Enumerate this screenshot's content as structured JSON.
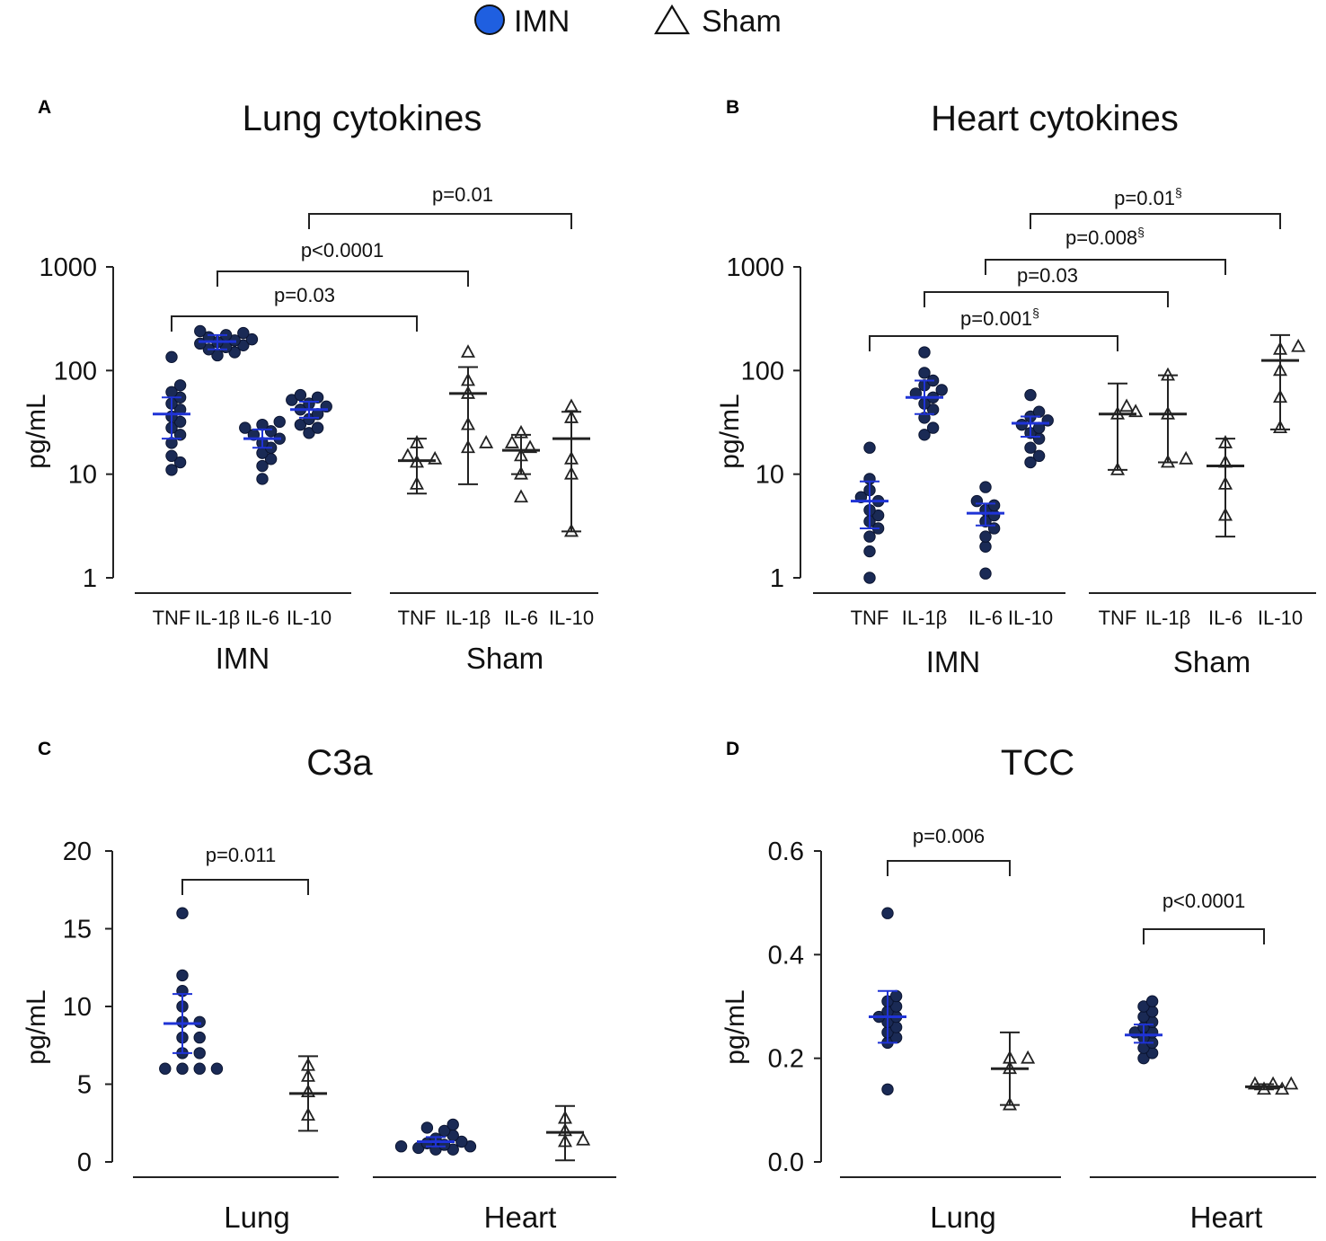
{
  "legend": {
    "imn_label": "IMN",
    "sham_label": "Sham",
    "imn_color": "#1f5fe0",
    "sham_color": "#ffffff"
  },
  "colors": {
    "point": "#1a2a55",
    "imn_bar": "#1f33d6",
    "sham_bar": "#222222"
  },
  "chart_data": [
    {
      "panel": "A",
      "type": "scatter",
      "title": "Lung cytokines",
      "ylabel": "pg/mL",
      "yscale": "log",
      "ylim": [
        1,
        1000
      ],
      "yticks": [
        "1",
        "10",
        "100",
        "1000"
      ],
      "groups": [
        {
          "label": "IMN",
          "categories": [
            "TNF",
            "IL-1β",
            "IL-6",
            "IL-10"
          ]
        },
        {
          "label": "Sham",
          "categories": [
            "TNF",
            "IL-1β",
            "IL-6",
            "IL-10"
          ]
        }
      ],
      "series": [
        {
          "group": "IMN",
          "cat": "TNF",
          "name": "IMN",
          "points": [
            11,
            13,
            15,
            20,
            24,
            28,
            32,
            36,
            42,
            48,
            55,
            62,
            72,
            135
          ],
          "center": 38,
          "err": [
            22,
            55
          ]
        },
        {
          "group": "IMN",
          "cat": "IL-1β",
          "name": "IMN",
          "points": [
            140,
            150,
            160,
            168,
            175,
            182,
            188,
            195,
            200,
            210,
            220,
            230,
            240
          ],
          "center": 190,
          "err": [
            160,
            220
          ]
        },
        {
          "group": "IMN",
          "cat": "IL-6",
          "name": "IMN",
          "points": [
            9,
            12,
            14,
            16,
            18,
            20,
            22,
            24,
            26,
            28,
            30,
            32
          ],
          "center": 22,
          "err": [
            18,
            27
          ]
        },
        {
          "group": "IMN",
          "cat": "IL-10",
          "name": "IMN",
          "points": [
            25,
            28,
            30,
            34,
            38,
            42,
            45,
            48,
            52,
            55,
            58
          ],
          "center": 42,
          "err": [
            35,
            50
          ]
        },
        {
          "group": "Sham",
          "cat": "TNF",
          "name": "Sham",
          "points": [
            8,
            13,
            14,
            15,
            20
          ],
          "center": 13.5,
          "err": [
            6.5,
            22
          ]
        },
        {
          "group": "Sham",
          "cat": "IL-1β",
          "name": "Sham",
          "points": [
            18,
            20,
            30,
            60,
            80,
            150
          ],
          "center": 60,
          "err": [
            8,
            108
          ]
        },
        {
          "group": "Sham",
          "cat": "IL-6",
          "name": "Sham",
          "points": [
            6,
            10,
            15,
            18,
            20,
            25
          ],
          "center": 17,
          "err": [
            10,
            24
          ]
        },
        {
          "group": "Sham",
          "cat": "IL-10",
          "name": "Sham",
          "points": [
            2.8,
            10,
            14,
            35,
            45
          ],
          "center": 22,
          "err": [
            2.8,
            40
          ]
        }
      ],
      "comparisons": [
        {
          "label": "p=0.03",
          "from": "IMN TNF",
          "to": "Sham TNF"
        },
        {
          "label": "p<0.0001",
          "from": "IMN IL-1β",
          "to": "Sham IL-1β"
        },
        {
          "label": "p=0.01",
          "from": "IMN IL-10",
          "to": "Sham IL-10"
        }
      ]
    },
    {
      "panel": "B",
      "type": "scatter",
      "title": "Heart cytokines",
      "ylabel": "pg/mL",
      "yscale": "log",
      "ylim": [
        1,
        1000
      ],
      "yticks": [
        "1",
        "10",
        "100",
        "1000"
      ],
      "groups": [
        {
          "label": "IMN",
          "categories": [
            "TNF",
            "IL-1β",
            "IL-6",
            "IL-10"
          ]
        },
        {
          "label": "Sham",
          "categories": [
            "TNF",
            "IL-1β",
            "IL-6",
            "IL-10"
          ]
        }
      ],
      "series": [
        {
          "group": "IMN",
          "cat": "TNF",
          "name": "IMN",
          "points": [
            1,
            1.8,
            2.5,
            3,
            3.5,
            4,
            4.5,
            5.5,
            6,
            7,
            9,
            18
          ],
          "center": 5.5,
          "err": [
            3,
            8.5
          ]
        },
        {
          "group": "IMN",
          "cat": "IL-1β",
          "name": "IMN",
          "points": [
            24,
            28,
            35,
            42,
            48,
            55,
            60,
            65,
            72,
            80,
            95,
            150
          ],
          "center": 55,
          "err": [
            38,
            80
          ]
        },
        {
          "group": "IMN",
          "cat": "IL-6",
          "name": "IMN",
          "points": [
            1.1,
            2,
            2.5,
            3,
            3.5,
            4,
            4.5,
            5,
            5.5,
            7.5
          ],
          "center": 4.2,
          "err": [
            3.2,
            5.2
          ]
        },
        {
          "group": "IMN",
          "cat": "IL-10",
          "name": "IMN",
          "points": [
            13,
            15,
            18,
            22,
            25,
            28,
            30,
            33,
            36,
            40,
            58
          ],
          "center": 31,
          "err": [
            23,
            36
          ]
        },
        {
          "group": "Sham",
          "cat": "TNF",
          "name": "Sham",
          "points": [
            11,
            38,
            40,
            45
          ],
          "center": 38,
          "err": [
            11,
            75
          ]
        },
        {
          "group": "Sham",
          "cat": "IL-1β",
          "name": "Sham",
          "points": [
            13,
            14,
            38,
            90
          ],
          "center": 38,
          "err": [
            13,
            90
          ]
        },
        {
          "group": "Sham",
          "cat": "IL-6",
          "name": "Sham",
          "points": [
            4,
            8,
            13,
            20
          ],
          "center": 12,
          "err": [
            2.5,
            22
          ]
        },
        {
          "group": "Sham",
          "cat": "IL-10",
          "name": "Sham",
          "points": [
            28,
            55,
            100,
            160,
            170
          ],
          "center": 125,
          "err": [
            27,
            220
          ]
        }
      ],
      "comparisons": [
        {
          "label": "p=0.001",
          "sup": "§",
          "from": "IMN TNF",
          "to": "Sham TNF"
        },
        {
          "label": "p=0.03",
          "from": "IMN IL-1β",
          "to": "Sham IL-1β"
        },
        {
          "label": "p=0.008",
          "sup": "§",
          "from": "IMN IL-6",
          "to": "Sham IL-6"
        },
        {
          "label": "p=0.01",
          "sup": "§",
          "from": "IMN IL-10",
          "to": "Sham IL-10"
        }
      ]
    },
    {
      "panel": "C",
      "type": "scatter",
      "title": "C3a",
      "ylabel": "pg/mL",
      "yscale": "linear",
      "ylim": [
        0,
        20
      ],
      "yticks": [
        "0",
        "5",
        "10",
        "15",
        "20"
      ],
      "groups": [
        {
          "label": "Lung",
          "categories": [
            "IMN",
            "Sham"
          ]
        },
        {
          "label": "Heart",
          "categories": [
            "IMN",
            "Sham"
          ]
        }
      ],
      "series": [
        {
          "group": "Lung",
          "cat": "IMN",
          "name": "IMN",
          "points": [
            6,
            6,
            6,
            6,
            7,
            7,
            8,
            8,
            9,
            9,
            10,
            11,
            12,
            16
          ],
          "center": 8.9,
          "err": [
            7,
            10.8
          ]
        },
        {
          "group": "Lung",
          "cat": "Sham",
          "name": "Sham",
          "points": [
            3,
            4.5,
            5.5,
            6.2
          ],
          "center": 4.4,
          "err": [
            2,
            6.8
          ]
        },
        {
          "group": "Heart",
          "cat": "IMN",
          "name": "IMN",
          "points": [
            0.8,
            0.8,
            0.9,
            1,
            1,
            1.1,
            1.2,
            1.3,
            1.5,
            1.7,
            2,
            2.2,
            2.4
          ],
          "center": 1.3,
          "err": [
            1,
            1.6
          ]
        },
        {
          "group": "Heart",
          "cat": "Sham",
          "name": "Sham",
          "points": [
            1.3,
            1.4,
            2,
            2.8
          ],
          "center": 1.9,
          "err": [
            0.1,
            3.6
          ]
        }
      ],
      "comparisons": [
        {
          "label": "p=0.011",
          "from": "Lung IMN",
          "to": "Lung Sham"
        }
      ]
    },
    {
      "panel": "D",
      "type": "scatter",
      "title": "TCC",
      "ylabel": "pg/mL",
      "yscale": "linear",
      "ylim": [
        0,
        0.6
      ],
      "yticks": [
        "0.0",
        "0.2",
        "0.4",
        "0.6"
      ],
      "groups": [
        {
          "label": "Lung",
          "categories": [
            "IMN",
            "Sham"
          ]
        },
        {
          "label": "Heart",
          "categories": [
            "IMN",
            "Sham"
          ]
        }
      ],
      "series": [
        {
          "group": "Lung",
          "cat": "IMN",
          "name": "IMN",
          "points": [
            0.14,
            0.23,
            0.24,
            0.25,
            0.26,
            0.27,
            0.28,
            0.28,
            0.29,
            0.3,
            0.31,
            0.32,
            0.48
          ],
          "center": 0.28,
          "err": [
            0.23,
            0.33
          ]
        },
        {
          "group": "Lung",
          "cat": "Sham",
          "name": "Sham",
          "points": [
            0.11,
            0.18,
            0.2,
            0.2
          ],
          "center": 0.18,
          "err": [
            0.11,
            0.25
          ]
        },
        {
          "group": "Heart",
          "cat": "IMN",
          "name": "IMN",
          "points": [
            0.2,
            0.21,
            0.22,
            0.23,
            0.24,
            0.25,
            0.25,
            0.26,
            0.27,
            0.28,
            0.29,
            0.3,
            0.31
          ],
          "center": 0.245,
          "err": [
            0.23,
            0.265
          ]
        },
        {
          "group": "Heart",
          "cat": "Sham",
          "name": "Sham",
          "points": [
            0.14,
            0.14,
            0.15,
            0.15,
            0.15
          ],
          "center": 0.145,
          "err": [
            0.14,
            0.15
          ]
        }
      ],
      "comparisons": [
        {
          "label": "p=0.006",
          "from": "Lung IMN",
          "to": "Lung Sham"
        },
        {
          "label": "p<0.0001",
          "from": "Heart IMN",
          "to": "Heart Sham"
        }
      ]
    }
  ]
}
